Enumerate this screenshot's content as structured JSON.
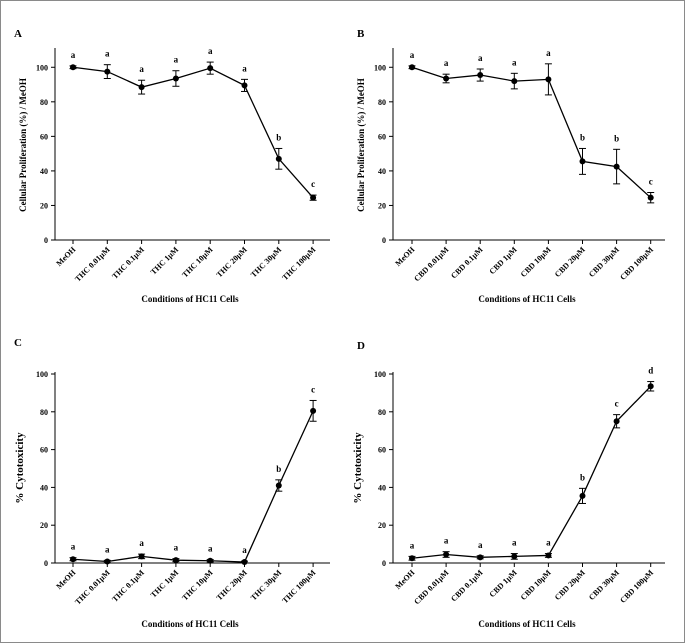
{
  "chart_data": [
    {
      "type": "line",
      "panel": "A",
      "categories": [
        "MeOH",
        "THC 0.01µM",
        "THC 0.1µM",
        "THC 1µM",
        "THC 10µM",
        "THC 20µM",
        "THC 30µM",
        "THC 100µM"
      ],
      "values": [
        100,
        97.5,
        88.5,
        93.5,
        99.5,
        89.5,
        47,
        24.5
      ],
      "errors": [
        0.8,
        4,
        4,
        4.5,
        3.5,
        3.5,
        6,
        1.5
      ],
      "significance": [
        "a",
        "a",
        "a",
        "a",
        "a",
        "a",
        "b",
        "c"
      ],
      "xlabel": "Conditions of HC11 Cells",
      "ylabel": "Cellular Proliferation (%) / MeOH",
      "ylim": [
        0,
        110
      ],
      "yticks": [
        0,
        20,
        40,
        60,
        80,
        100
      ]
    },
    {
      "type": "line",
      "panel": "B",
      "categories": [
        "MeOH",
        "CBD 0.01µM",
        "CBD 0.1µM",
        "CBD 1µM",
        "CBD 10µM",
        "CBD 20µM",
        "CBD 30µM",
        "CBD 100µM"
      ],
      "values": [
        100,
        93.5,
        95.5,
        92,
        93,
        45.5,
        42.5,
        24.5
      ],
      "errors": [
        0.8,
        2.5,
        3.5,
        4.5,
        9,
        7.5,
        10,
        3
      ],
      "significance": [
        "a",
        "a",
        "a",
        "a",
        "a",
        "b",
        "b",
        "c"
      ],
      "xlabel": "Conditions of HC11 Cells",
      "ylabel": "Cellular Proliferation (%) / MeOH",
      "ylim": [
        0,
        110
      ],
      "yticks": [
        0,
        20,
        40,
        60,
        80,
        100
      ]
    },
    {
      "type": "line",
      "panel": "C",
      "categories": [
        "MeOH",
        "THC 0.01µM",
        "THC 0.1µM",
        "THC 1µM",
        "THC 10µM",
        "THC 20µM",
        "THC 30µM",
        "THC 100µM"
      ],
      "values": [
        2,
        0.8,
        3.5,
        1.5,
        1.2,
        0.5,
        41,
        80.5
      ],
      "errors": [
        0.8,
        0.6,
        1.2,
        0.8,
        0.6,
        0.5,
        3,
        5.5
      ],
      "significance": [
        "a",
        "a",
        "a",
        "a",
        "a",
        "a",
        "b",
        "c"
      ],
      "xlabel": "Conditions of HC11 Cells",
      "ylabel": "% Cytotoxicity",
      "ylim": [
        0,
        100
      ],
      "yticks": [
        0,
        20,
        40,
        60,
        80,
        100
      ]
    },
    {
      "type": "line",
      "panel": "D",
      "categories": [
        "MeOH",
        "CBD 0.01µM",
        "CBD 0.1µM",
        "CBD 1µM",
        "CBD 10µM",
        "CBD 20µM",
        "CBD 30µM",
        "CBD 100µM"
      ],
      "values": [
        2.5,
        4.5,
        3,
        3.5,
        4,
        35.5,
        75,
        93.5
      ],
      "errors": [
        1,
        1.5,
        0.8,
        1.5,
        1,
        4,
        3.5,
        2.5
      ],
      "significance": [
        "a",
        "a",
        "a",
        "a",
        "a",
        "b",
        "c",
        "d"
      ],
      "xlabel": "Conditions of HC11 Cells",
      "ylabel": "% Cytotoxicity",
      "ylim": [
        0,
        100
      ],
      "yticks": [
        0,
        20,
        40,
        60,
        80,
        100
      ]
    }
  ],
  "colors": {
    "line": "#000000",
    "frame": "#8a8a8a"
  }
}
